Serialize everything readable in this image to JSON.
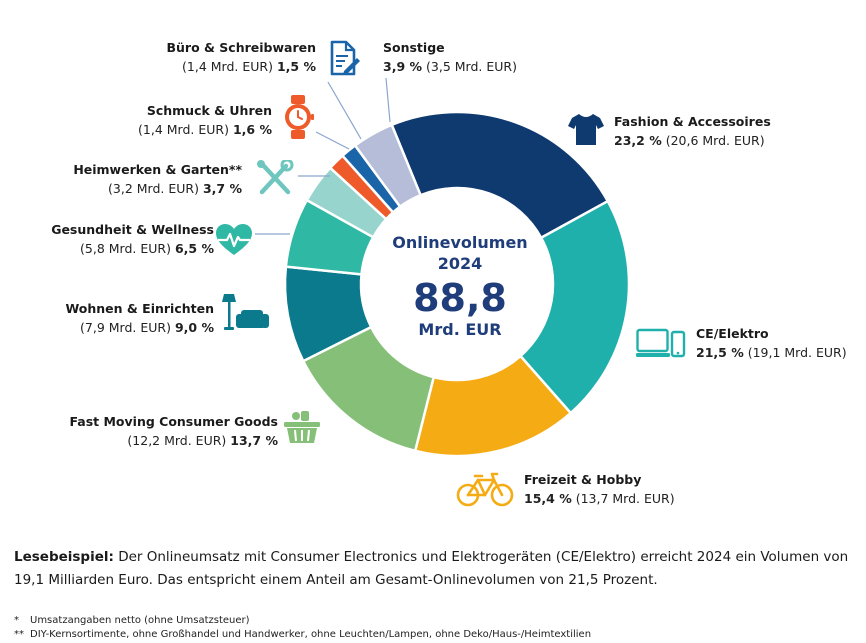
{
  "chart_data": {
    "type": "pie",
    "donut": true,
    "center": {
      "title1": "Onlinevolumen",
      "title2": "2024",
      "value": "88,8",
      "unit": "Mrd. EUR"
    },
    "slices": [
      {
        "name": "Fashion & Accessoires",
        "pct": 23.2,
        "pct_label": "23,2 %",
        "abs_label": "(20,6 Mrd. EUR)",
        "color": "#0f3a6f",
        "icon": "tshirt-icon"
      },
      {
        "name": "CE/Elektro",
        "pct": 21.5,
        "pct_label": "21,5 %",
        "abs_label": "(19,1 Mrd. EUR)",
        "color": "#1fb0ac",
        "icon": "devices-icon"
      },
      {
        "name": "Freizeit & Hobby",
        "pct": 15.4,
        "pct_label": "15,4 %",
        "abs_label": "(13,7 Mrd. EUR)",
        "color": "#f5ac14",
        "icon": "bicycle-icon"
      },
      {
        "name": "Fast Moving Consumer Goods",
        "pct": 13.7,
        "pct_label": "13,7 %",
        "abs_label": "(12,2 Mrd. EUR)",
        "color": "#85bf78",
        "icon": "basket-icon"
      },
      {
        "name": "Wohnen & Einrichten",
        "pct": 9.0,
        "pct_label": "9,0 %",
        "abs_label": "(7,9 Mrd. EUR)",
        "color": "#0a7a8c",
        "icon": "sofa-lamp-icon"
      },
      {
        "name": "Gesundheit & Wellness",
        "pct": 6.5,
        "pct_label": "6,5 %",
        "abs_label": "(5,8 Mrd. EUR)",
        "color": "#2fb8a4",
        "icon": "heart-pulse-icon"
      },
      {
        "name": "Heimwerken & Garten**",
        "pct": 3.7,
        "pct_label": "3,7 %",
        "abs_label": "(3,2 Mrd. EUR)",
        "color": "#97d4ce",
        "icon": "tools-icon"
      },
      {
        "name": "Schmuck & Uhren",
        "pct": 1.6,
        "pct_label": "1,6 %",
        "abs_label": "(1,4 Mrd. EUR)",
        "color": "#ee5a2a",
        "icon": "watch-icon"
      },
      {
        "name": "Büro & Schreibwaren",
        "pct": 1.5,
        "pct_label": "1,5 %",
        "abs_label": "(1,4 Mrd. EUR)",
        "color": "#1a64a8",
        "icon": "document-pen-icon"
      },
      {
        "name": "Sonstige",
        "pct": 3.9,
        "pct_label": "3,9 %",
        "abs_label": "(3,5 Mrd. EUR)",
        "color": "#b6bdd8",
        "icon": ""
      }
    ]
  },
  "note": {
    "lead": "Lesebeispiel:",
    "text": " Der Onlineumsatz mit Consumer Electronics und Elektrogeräten (CE/Elektro) erreicht 2024 ein Volumen von 19,1 Milliarden Euro. Das entspricht einem Anteil am Gesamt-Onlinevolumen von 21,5 Prozent."
  },
  "footnotes": [
    {
      "mark": "*",
      "text": "Umsatzangaben netto (ohne Umsatzsteuer)"
    },
    {
      "mark": "**",
      "text": "DIY-Kernsortimente, ohne Großhandel und Handwerker, ohne Leuchten/Lampen, ohne Deko/Haus-/Heimtextilien"
    }
  ]
}
